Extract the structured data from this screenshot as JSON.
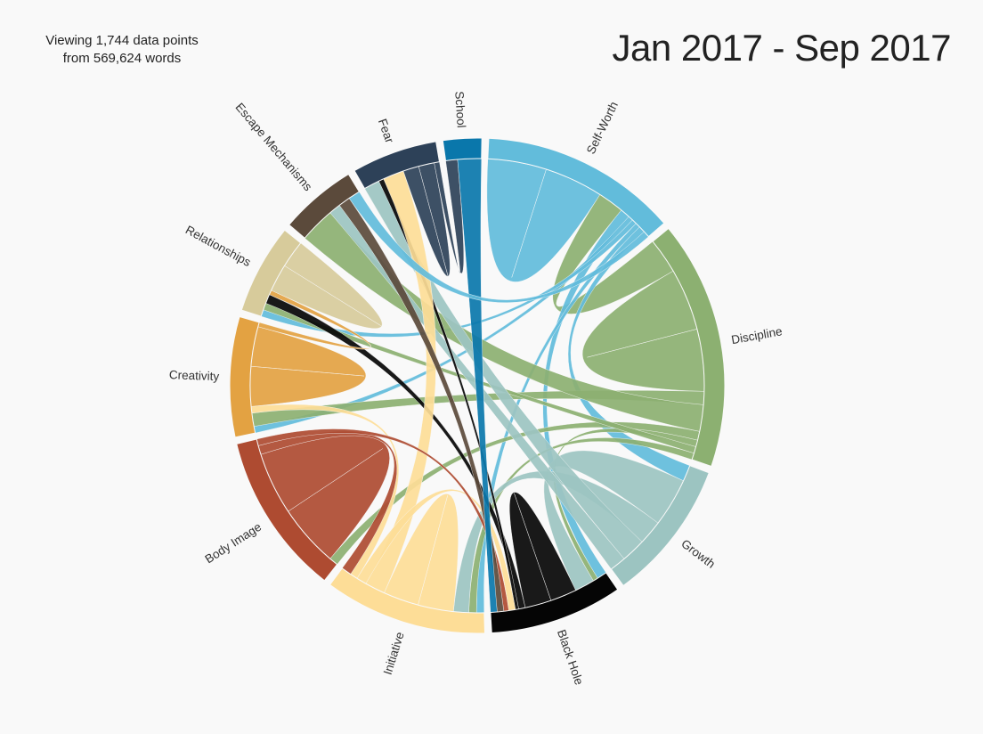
{
  "stats": {
    "line1": "Viewing 1,744 data points",
    "line2": "from 569,624 words"
  },
  "range_title": "Jan 2017 - Sep 2017",
  "groups": [
    {
      "name": "School",
      "color": "#0a77ab"
    },
    {
      "name": "Self-Worth",
      "color": "#62bcdb"
    },
    {
      "name": "Discipline",
      "color": "#8cb071"
    },
    {
      "name": "Growth",
      "color": "#9cc4c1"
    },
    {
      "name": "Black Hole",
      "color": "#050505"
    },
    {
      "name": "Initiative",
      "color": "#fddd97"
    },
    {
      "name": "Body Image",
      "color": "#ae4b31"
    },
    {
      "name": "Creativity",
      "color": "#e3a242"
    },
    {
      "name": "Relationships",
      "color": "#d7cb9b"
    },
    {
      "name": "Escape Mechanisms",
      "color": "#5b4a3b"
    },
    {
      "name": "Fear",
      "color": "#2d4158"
    }
  ],
  "chart_data": {
    "type": "chord",
    "groups": [
      "School",
      "Self-Worth",
      "Discipline",
      "Growth",
      "Black Hole",
      "Initiative",
      "Body Image",
      "Creativity",
      "Relationships",
      "Escape Mechanisms",
      "Fear"
    ],
    "group_share_degrees": [
      9,
      46,
      58,
      33,
      31,
      38,
      38,
      28,
      21,
      18,
      20
    ],
    "ribbons": [
      {
        "source": "Self-Worth",
        "target": "Self-Worth",
        "weight": 18
      },
      {
        "source": "Discipline",
        "target": "Self-Worth",
        "weight": 8
      },
      {
        "source": "Self-Worth",
        "target": "Black Hole",
        "weight": 3
      },
      {
        "source": "Self-Worth",
        "target": "Creativity",
        "weight": 1.5
      },
      {
        "source": "Self-Worth",
        "target": "Relationships",
        "weight": 1.5
      },
      {
        "source": "Self-Worth",
        "target": "Initiative",
        "weight": 1.5
      },
      {
        "source": "Self-Worth",
        "target": "Growth",
        "weight": 2
      },
      {
        "source": "Discipline",
        "target": "Discipline",
        "weight": 14
      },
      {
        "source": "Discipline",
        "target": "Creativity",
        "weight": 3
      },
      {
        "source": "Discipline",
        "target": "Escape Mechanisms",
        "weight": 6
      },
      {
        "source": "Discipline",
        "target": "Body Image",
        "weight": 2
      },
      {
        "source": "Discipline",
        "target": "Black Hole",
        "weight": 1.5
      },
      {
        "source": "Discipline",
        "target": "Relationships",
        "weight": 1.5
      },
      {
        "source": "Discipline",
        "target": "Initiative",
        "weight": 1.5
      },
      {
        "source": "Growth",
        "target": "Black Hole",
        "weight": 6
      },
      {
        "source": "Growth",
        "target": "Initiative",
        "weight": 3
      },
      {
        "source": "Growth",
        "target": "Fear",
        "weight": 3
      },
      {
        "source": "Growth",
        "target": "Escape Mechanisms",
        "weight": 2
      },
      {
        "source": "Black Hole",
        "target": "Black Hole",
        "weight": 8
      },
      {
        "source": "Black Hole",
        "target": "Relationships",
        "weight": 2
      },
      {
        "source": "Black Hole",
        "target": "Fear",
        "weight": 1
      },
      {
        "source": "Initiative",
        "target": "Initiative",
        "weight": 7
      },
      {
        "source": "Initiative",
        "target": "Fear",
        "weight": 4
      },
      {
        "source": "Initiative",
        "target": "Black Hole",
        "weight": 2
      },
      {
        "source": "Initiative",
        "target": "Creativity",
        "weight": 1.5
      },
      {
        "source": "Body Image",
        "target": "Body Image",
        "weight": 14
      },
      {
        "source": "Body Image",
        "target": "Initiative",
        "weight": 2
      },
      {
        "source": "Body Image",
        "target": "Black Hole",
        "weight": 1.5
      },
      {
        "source": "Creativity",
        "target": "Creativity",
        "weight": 9
      },
      {
        "source": "Creativity",
        "target": "Relationships",
        "weight": 1
      },
      {
        "source": "Relationships",
        "target": "Relationships",
        "weight": 6
      },
      {
        "source": "Escape Mechanisms",
        "target": "Black Hole",
        "weight": 2
      },
      {
        "source": "Fear",
        "target": "Fear",
        "weight": 3
      },
      {
        "source": "Fear",
        "target": "School",
        "weight": 1
      },
      {
        "source": "School",
        "target": "Black Hole",
        "weight": 2
      },
      {
        "source": "Self-Worth",
        "target": "Escape Mechanisms",
        "weight": 2
      }
    ]
  }
}
